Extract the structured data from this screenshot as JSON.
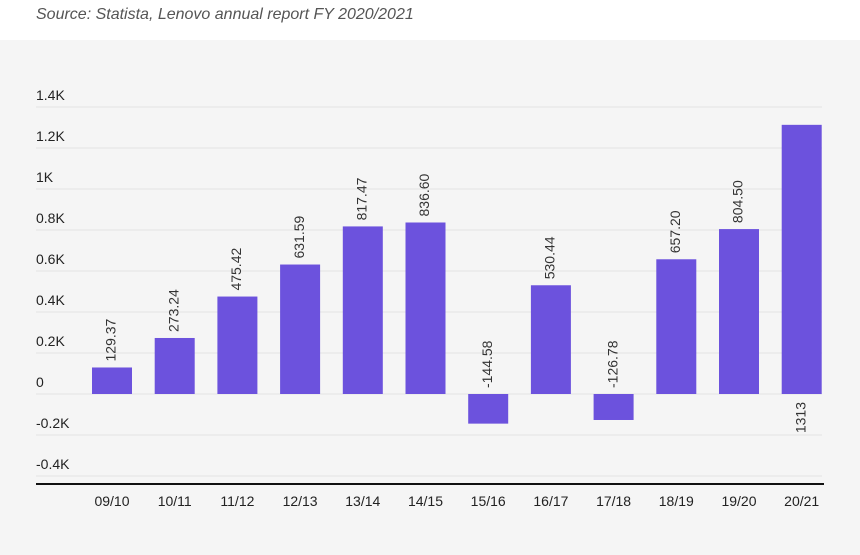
{
  "source": "Source: Statista, Lenovo annual report FY 2020/2021",
  "colors": {
    "bar": "#6c52dd",
    "grid": "#e2e2e2",
    "panel": "#f5f5f5"
  },
  "chart_data": {
    "type": "bar",
    "categories": [
      "09/10",
      "10/11",
      "11/12",
      "12/13",
      "13/14",
      "14/15",
      "15/16",
      "16/17",
      "17/18",
      "18/19",
      "19/20",
      "20/21"
    ],
    "values": [
      129.37,
      273.24,
      475.42,
      631.59,
      817.47,
      836.6,
      -144.58,
      530.44,
      -126.78,
      657.2,
      804.5,
      1313
    ],
    "labels": [
      "129.37",
      "273.24",
      "475.42",
      "631.59",
      "817.47",
      "836.60",
      "-144.58",
      "530.44",
      "-126.78",
      "657.20",
      "804.50",
      "1313"
    ],
    "y_ticks": [
      -400,
      -200,
      0,
      200,
      400,
      600,
      800,
      1000,
      1200,
      1400
    ],
    "y_tick_labels": [
      "-0.4K",
      "-0.2K",
      "0",
      "0.2K",
      "0.4K",
      "0.6K",
      "0.8K",
      "1K",
      "1.2K",
      "1.4K"
    ],
    "ylim": [
      -450,
      1450
    ],
    "grid": true,
    "title": "",
    "xlabel": "",
    "ylabel": ""
  }
}
